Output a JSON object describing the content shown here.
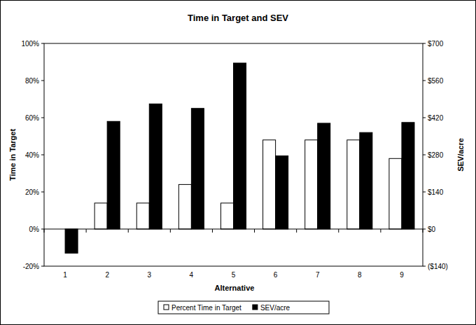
{
  "chart_data": {
    "type": "bar",
    "title": "Time in Target and SEV",
    "x_label": "Alternative",
    "y_label": "Time in Target",
    "y2_label": "SEV/acre",
    "categories": [
      "1",
      "2",
      "3",
      "4",
      "5",
      "6",
      "7",
      "8",
      "9"
    ],
    "series": [
      {
        "name": "Percent Time in Target",
        "color": "#ffffff",
        "values": [
          0,
          14,
          14,
          24,
          14,
          48,
          48,
          48,
          38
        ]
      },
      {
        "name": "SEV/acre",
        "color": "#000000",
        "axis": "y2",
        "values": [
          -91,
          406,
          472,
          455,
          626,
          276,
          399,
          364,
          402
        ]
      }
    ],
    "ylim": [
      -20,
      100
    ],
    "yticks": [
      {
        "value": -20,
        "label": "-20%"
      },
      {
        "value": 0,
        "label": "0%"
      },
      {
        "value": 20,
        "label": "20%"
      },
      {
        "value": 40,
        "label": "40%"
      },
      {
        "value": 60,
        "label": "60%"
      },
      {
        "value": 80,
        "label": "80%"
      },
      {
        "value": 100,
        "label": "100%"
      }
    ],
    "y2lim": [
      -140,
      700
    ],
    "y2ticks": [
      {
        "value": -140,
        "label": "($140)"
      },
      {
        "value": 0,
        "label": "$0"
      },
      {
        "value": 140,
        "label": "$140"
      },
      {
        "value": 280,
        "label": "$280"
      },
      {
        "value": 420,
        "label": "$420"
      },
      {
        "value": 560,
        "label": "$560"
      },
      {
        "value": 700,
        "label": "$700"
      }
    ],
    "grid": false,
    "legend": "bottom"
  }
}
